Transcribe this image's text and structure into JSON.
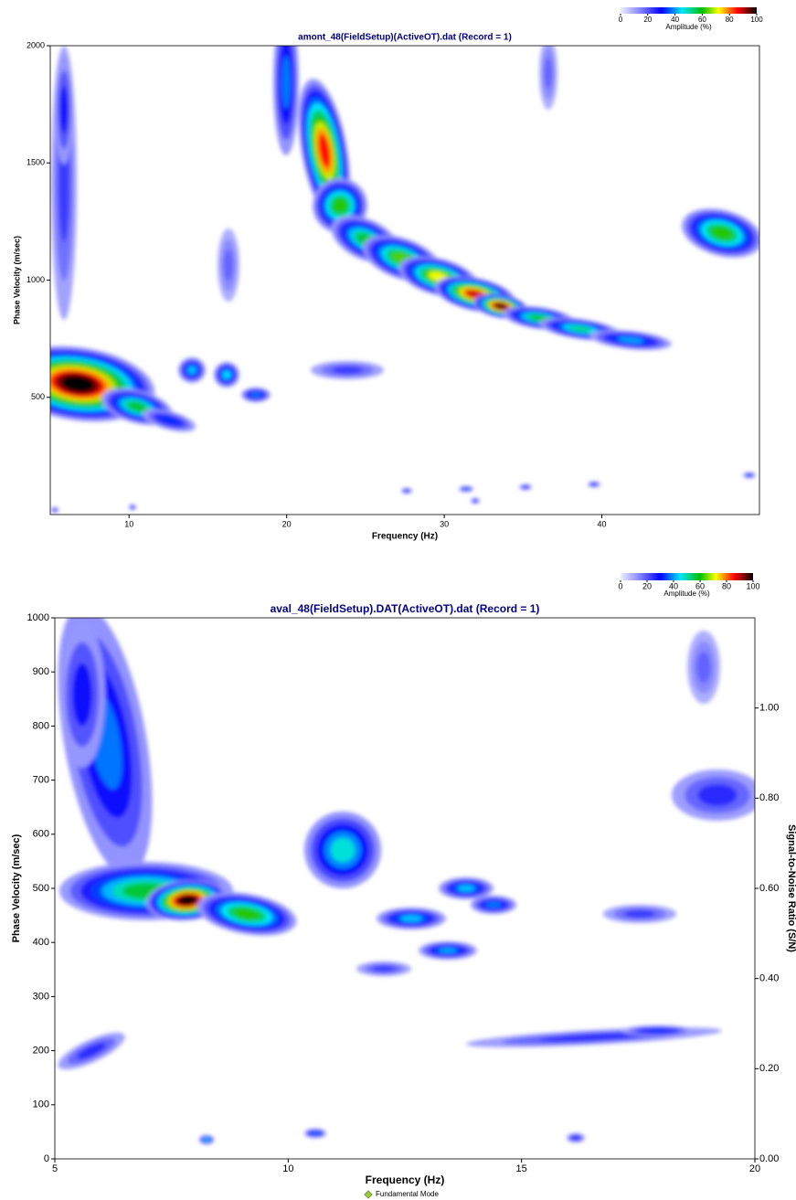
{
  "chart_data": [
    {
      "type": "contour",
      "title": "amont_48(FieldSetup)(ActiveOT).dat (Record = 1)",
      "x_label": "Frequency (Hz)",
      "y_label": "Phase Velocity (m/sec)",
      "xlim": [
        5,
        50
      ],
      "xticks": [
        10,
        20,
        30,
        40
      ],
      "ylim": [
        0,
        2000
      ],
      "yticks": [
        500,
        1000,
        1500,
        2000
      ],
      "colorbar": {
        "label": "Amplitude (%)",
        "lim": [
          0,
          100
        ],
        "ticks": [
          0,
          20,
          40,
          60,
          80,
          100
        ]
      }
    },
    {
      "type": "contour",
      "title": "aval_48(FieldSetup).DAT(ActiveOT).dat (Record = 1)",
      "x_label": "Frequency (Hz)",
      "y_label": "Phase Velocity (m/sec)",
      "y2_label": "Signal-to-Noise Ratio (S/N)",
      "xlim": [
        5,
        20
      ],
      "xticks": [
        5,
        10,
        15,
        20
      ],
      "ylim": [
        0,
        1000
      ],
      "yticks": [
        0,
        100,
        200,
        300,
        400,
        500,
        600,
        700,
        800,
        900,
        1000
      ],
      "y2lim": [
        0,
        1.2
      ],
      "y2ticks": [
        {
          "value": 0,
          "label": "0.00"
        },
        {
          "value": 0.2,
          "label": "0.20"
        },
        {
          "value": 0.4,
          "label": "0.40"
        },
        {
          "value": 0.6,
          "label": "0.60"
        },
        {
          "value": 0.8,
          "label": "0.80"
        },
        {
          "value": 1,
          "label": "1.00"
        }
      ],
      "colorbar": {
        "label": "Amplitude (%)",
        "lim": [
          0,
          100
        ],
        "ticks": [
          0,
          20,
          40,
          60,
          80,
          100
        ]
      },
      "legend": [
        {
          "name": "Fundamental Mode",
          "color": "#9acd32"
        }
      ]
    }
  ]
}
